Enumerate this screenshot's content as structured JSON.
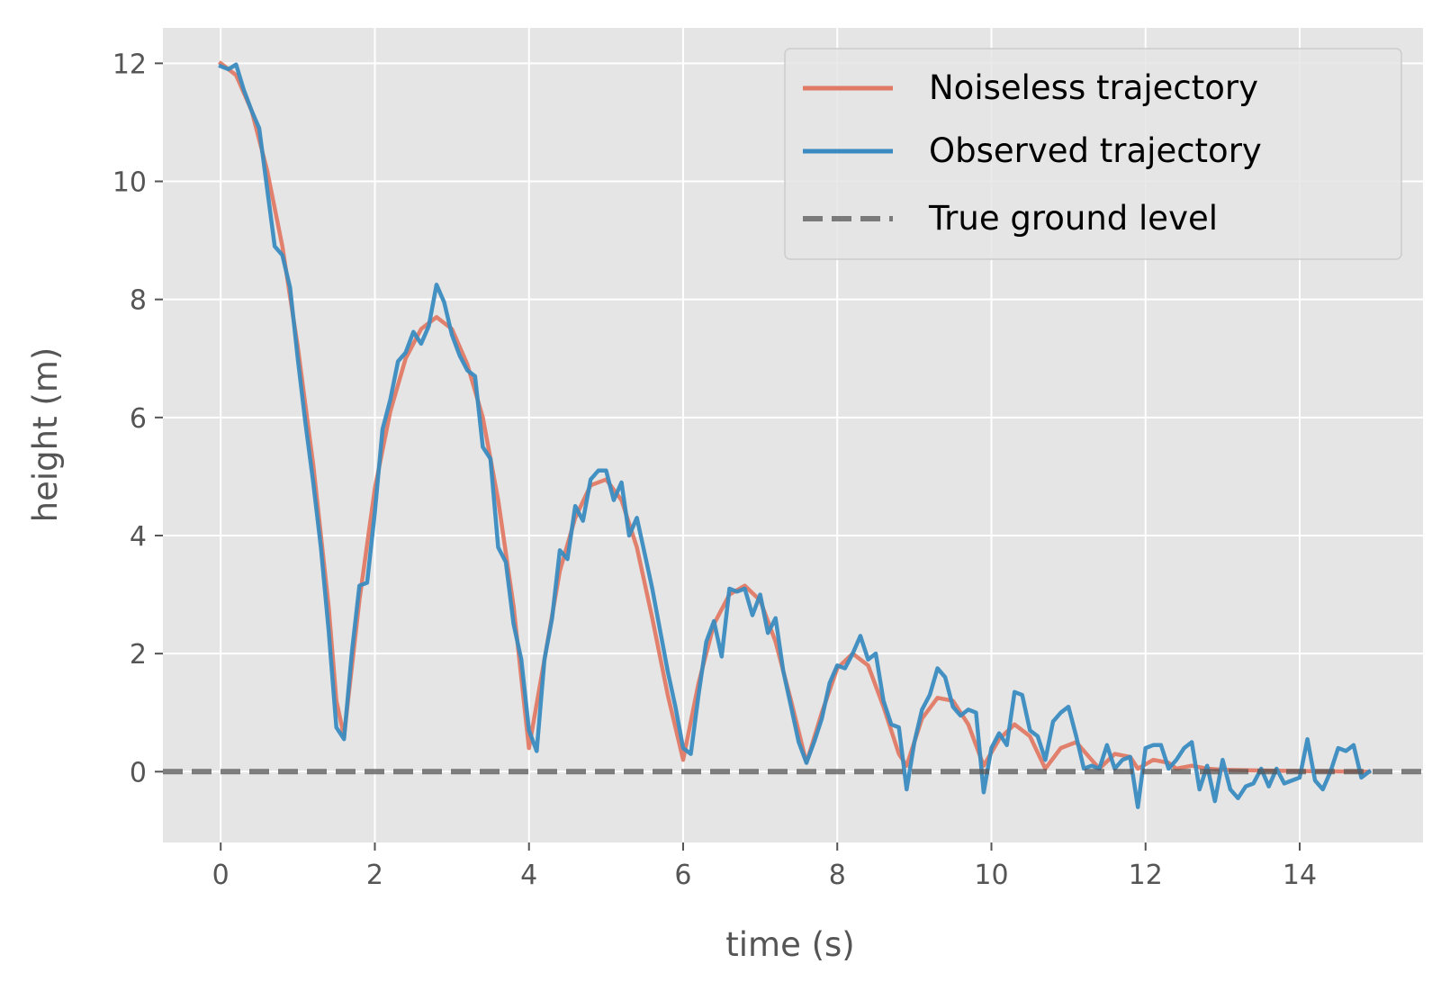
{
  "chart_data": {
    "type": "line",
    "title": "",
    "xlabel": "time (s)",
    "ylabel": "height (m)",
    "xlim": [
      -0.75,
      15.6
    ],
    "ylim": [
      -1.2,
      12.6
    ],
    "xticks": [
      0,
      2,
      4,
      6,
      8,
      10,
      12,
      14
    ],
    "yticks": [
      0,
      2,
      4,
      6,
      8,
      10,
      12
    ],
    "grid": true,
    "legend_position": "top-right",
    "colors": {
      "background": "#e5e5e5",
      "grid": "#ffffff",
      "noiseless": "#e07a65",
      "observed": "#3a8bc0",
      "ground": "#555555"
    },
    "series": [
      {
        "name": "Noiseless trajectory",
        "style": "solid",
        "x": [
          0,
          0.2,
          0.4,
          0.6,
          0.8,
          1.0,
          1.2,
          1.4,
          1.5,
          1.6,
          1.8,
          2.0,
          2.2,
          2.4,
          2.6,
          2.8,
          3.0,
          3.2,
          3.4,
          3.6,
          3.8,
          4.0,
          4.2,
          4.4,
          4.6,
          4.8,
          5.0,
          5.2,
          5.4,
          5.6,
          5.8,
          6.0,
          6.2,
          6.4,
          6.6,
          6.8,
          7.0,
          7.2,
          7.4,
          7.6,
          7.8,
          8.0,
          8.2,
          8.4,
          8.6,
          8.8,
          8.9,
          9.1,
          9.3,
          9.5,
          9.7,
          9.9,
          10.1,
          10.3,
          10.5,
          10.7,
          10.9,
          11.1,
          11.3,
          11.4,
          11.6,
          11.8,
          11.9,
          12.1,
          12.3,
          12.4,
          12.6,
          12.8,
          13.0,
          13.5,
          14.0,
          14.9
        ],
        "y": [
          12.0,
          11.8,
          11.2,
          10.2,
          8.9,
          7.2,
          5.2,
          2.8,
          1.2,
          0.6,
          2.9,
          4.8,
          6.1,
          7.0,
          7.5,
          7.7,
          7.5,
          6.9,
          6.0,
          4.6,
          2.8,
          0.4,
          1.9,
          3.4,
          4.3,
          4.85,
          4.95,
          4.6,
          3.8,
          2.6,
          1.3,
          0.2,
          1.5,
          2.5,
          3.0,
          3.15,
          2.9,
          2.2,
          1.2,
          0.15,
          1.0,
          1.75,
          2.0,
          1.8,
          1.1,
          0.3,
          0.1,
          0.9,
          1.25,
          1.2,
          0.8,
          0.1,
          0.55,
          0.8,
          0.6,
          0.05,
          0.4,
          0.5,
          0.2,
          0.05,
          0.3,
          0.25,
          0.05,
          0.2,
          0.15,
          0.05,
          0.1,
          0.05,
          0.03,
          0.02,
          0.01,
          0.0
        ]
      },
      {
        "name": "Observed trajectory",
        "style": "solid",
        "x": [
          0,
          0.1,
          0.2,
          0.3,
          0.4,
          0.5,
          0.6,
          0.7,
          0.8,
          0.9,
          1.0,
          1.1,
          1.2,
          1.3,
          1.4,
          1.5,
          1.6,
          1.7,
          1.8,
          1.9,
          2.0,
          2.1,
          2.2,
          2.3,
          2.4,
          2.5,
          2.6,
          2.7,
          2.8,
          2.9,
          3.0,
          3.1,
          3.2,
          3.3,
          3.4,
          3.5,
          3.6,
          3.7,
          3.8,
          3.9,
          4.0,
          4.1,
          4.2,
          4.3,
          4.4,
          4.5,
          4.6,
          4.7,
          4.8,
          4.9,
          5.0,
          5.1,
          5.2,
          5.3,
          5.4,
          5.5,
          5.6,
          5.7,
          5.8,
          5.9,
          6.0,
          6.1,
          6.2,
          6.3,
          6.4,
          6.5,
          6.6,
          6.7,
          6.8,
          6.9,
          7.0,
          7.1,
          7.2,
          7.3,
          7.4,
          7.5,
          7.6,
          7.7,
          7.8,
          7.9,
          8.0,
          8.1,
          8.2,
          8.3,
          8.4,
          8.5,
          8.6,
          8.7,
          8.8,
          8.9,
          9.0,
          9.1,
          9.2,
          9.3,
          9.4,
          9.5,
          9.6,
          9.7,
          9.8,
          9.9,
          10.0,
          10.1,
          10.2,
          10.3,
          10.4,
          10.5,
          10.6,
          10.7,
          10.8,
          10.9,
          11.0,
          11.1,
          11.2,
          11.3,
          11.4,
          11.5,
          11.6,
          11.7,
          11.8,
          11.9,
          12.0,
          12.1,
          12.2,
          12.3,
          12.4,
          12.5,
          12.6,
          12.7,
          12.8,
          12.9,
          13.0,
          13.1,
          13.2,
          13.3,
          13.4,
          13.5,
          13.6,
          13.7,
          13.8,
          13.9,
          14.0,
          14.1,
          14.2,
          14.3,
          14.4,
          14.5,
          14.6,
          14.7,
          14.8,
          14.9
        ],
        "y": [
          11.95,
          11.9,
          11.98,
          11.55,
          11.2,
          10.9,
          9.9,
          8.9,
          8.75,
          8.2,
          7.0,
          5.9,
          4.9,
          3.8,
          2.4,
          0.75,
          0.55,
          2.0,
          3.15,
          3.2,
          4.4,
          5.8,
          6.3,
          6.95,
          7.1,
          7.45,
          7.25,
          7.55,
          8.25,
          7.95,
          7.4,
          7.05,
          6.8,
          6.7,
          5.5,
          5.3,
          3.8,
          3.55,
          2.5,
          1.9,
          0.7,
          0.35,
          1.9,
          2.6,
          3.75,
          3.6,
          4.5,
          4.25,
          4.95,
          5.1,
          5.1,
          4.6,
          4.9,
          4.0,
          4.3,
          3.7,
          3.1,
          2.4,
          1.7,
          1.1,
          0.4,
          0.3,
          1.3,
          2.2,
          2.55,
          1.95,
          3.1,
          3.05,
          3.1,
          2.65,
          3.0,
          2.35,
          2.6,
          1.7,
          1.1,
          0.5,
          0.15,
          0.5,
          0.9,
          1.5,
          1.8,
          1.75,
          2.0,
          2.3,
          1.9,
          2.0,
          1.2,
          0.8,
          0.75,
          -0.3,
          0.5,
          1.05,
          1.3,
          1.75,
          1.6,
          1.1,
          0.95,
          1.05,
          1.0,
          -0.35,
          0.4,
          0.65,
          0.45,
          1.35,
          1.3,
          0.7,
          0.6,
          0.2,
          0.85,
          1.0,
          1.1,
          0.6,
          0.05,
          0.1,
          0.05,
          0.45,
          0.05,
          0.2,
          0.25,
          -0.6,
          0.4,
          0.45,
          0.45,
          0.05,
          0.2,
          0.4,
          0.5,
          -0.3,
          0.1,
          -0.5,
          0.2,
          -0.3,
          -0.45,
          -0.25,
          -0.2,
          0.05,
          -0.25,
          0.05,
          -0.2,
          -0.15,
          -0.1,
          0.55,
          -0.15,
          -0.3,
          0.0,
          0.4,
          0.35,
          0.45,
          -0.1,
          0.0
        ]
      },
      {
        "name": "True ground level",
        "style": "dashed",
        "y_const": 0
      }
    ]
  }
}
